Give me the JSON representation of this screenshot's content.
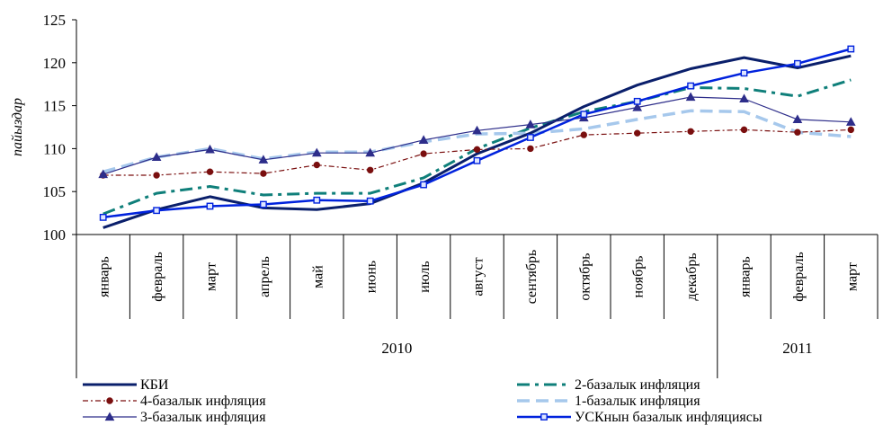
{
  "chart_data": {
    "type": "line",
    "title": "",
    "ylabel": "пайыздар",
    "xlabel": "",
    "ylim": [
      100,
      125
    ],
    "yticks": [
      "100",
      "105",
      "110",
      "115",
      "120",
      "125"
    ],
    "categories": [
      "январь",
      "февраль",
      "март",
      "апрель",
      "май",
      "июнь",
      "июль",
      "август",
      "сентябрь",
      "октябрь",
      "ноябрь",
      "декабрь",
      "январь",
      "февраль",
      "март"
    ],
    "years": [
      {
        "label": "2010",
        "start": 0,
        "end": 11
      },
      {
        "label": "2011",
        "start": 12,
        "end": 14
      }
    ],
    "grid": false,
    "legend_position": "bottom",
    "series": [
      {
        "name": "КБИ",
        "color": "#0a1f6b",
        "style": "solid-thick",
        "marker": "none",
        "values": [
          100.8,
          102.9,
          104.4,
          103.1,
          102.9,
          103.6,
          106.0,
          109.4,
          111.8,
          114.9,
          117.4,
          119.3,
          120.6,
          119.4,
          120.8
        ]
      },
      {
        "name": "2-базалык инфляция",
        "color": "#0f7f7a",
        "style": "dashdot",
        "marker": "none",
        "values": [
          102.4,
          104.8,
          105.6,
          104.6,
          104.8,
          104.8,
          106.6,
          110.0,
          112.4,
          114.3,
          115.5,
          117.1,
          117.0,
          116.1,
          118.0
        ]
      },
      {
        "name": "4-базалык инфляция",
        "color": "#7a0f0f",
        "style": "dashdot-thin",
        "marker": "circle",
        "values": [
          106.9,
          106.9,
          107.3,
          107.1,
          108.1,
          107.5,
          109.4,
          109.9,
          110.0,
          111.6,
          111.8,
          112.0,
          112.2,
          111.9,
          112.2
        ]
      },
      {
        "name": "1-базалык инфляция",
        "color": "#a6c8ec",
        "style": "dashed-thick",
        "marker": "none",
        "values": [
          107.3,
          109.0,
          110.0,
          108.8,
          109.6,
          109.6,
          110.8,
          111.7,
          111.8,
          112.3,
          113.4,
          114.4,
          114.3,
          111.9,
          111.4
        ]
      },
      {
        "name": "3-базалык инфляция",
        "color": "#2d2d8a",
        "style": "solid-thin",
        "marker": "triangle",
        "values": [
          107.0,
          109.0,
          109.9,
          108.7,
          109.5,
          109.5,
          111.0,
          112.1,
          112.8,
          113.6,
          114.8,
          116.0,
          115.8,
          113.4,
          113.1
        ]
      },
      {
        "name": "УСКнын базалык инфляциясы",
        "color": "#0022dd",
        "style": "solid",
        "marker": "square",
        "values": [
          102.0,
          102.8,
          103.3,
          103.5,
          104.0,
          103.9,
          105.8,
          108.6,
          111.3,
          114.0,
          115.5,
          117.3,
          118.8,
          119.9,
          121.6
        ]
      }
    ]
  }
}
